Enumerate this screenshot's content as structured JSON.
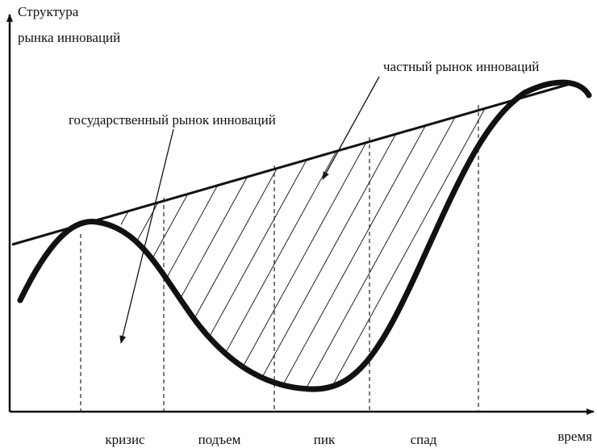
{
  "axis": {
    "y_label": [
      "Структура",
      "рынка инноваций"
    ],
    "x_label": "время"
  },
  "annotations": {
    "private": "частный рынок инноваций",
    "state": "государственный рынок инноваций"
  },
  "phases": [
    "кризис",
    "подъем",
    "пик",
    "спад"
  ]
}
